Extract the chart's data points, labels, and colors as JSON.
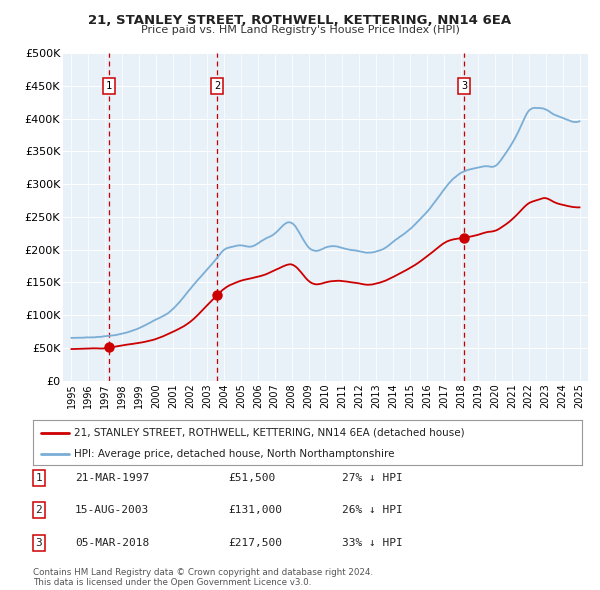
{
  "title": "21, STANLEY STREET, ROTHWELL, KETTERING, NN14 6EA",
  "subtitle": "Price paid vs. HM Land Registry's House Price Index (HPI)",
  "ylabel_ticks": [
    "£0",
    "£50K",
    "£100K",
    "£150K",
    "£200K",
    "£250K",
    "£300K",
    "£350K",
    "£400K",
    "£450K",
    "£500K"
  ],
  "ytick_vals": [
    0,
    50000,
    100000,
    150000,
    200000,
    250000,
    300000,
    350000,
    400000,
    450000,
    500000
  ],
  "xlim": [
    1994.5,
    2025.5
  ],
  "ylim": [
    0,
    500000
  ],
  "sale_dates": [
    1997.22,
    2003.62,
    2018.18
  ],
  "sale_prices": [
    51500,
    131000,
    217500
  ],
  "sale_labels": [
    "1",
    "2",
    "3"
  ],
  "hpi_color": "#7aaed6",
  "sale_color": "#cc0000",
  "dashed_color": "#cc0000",
  "plot_bg_color": "#e8f0f8",
  "grid_color": "#ffffff",
  "legend_label_red": "21, STANLEY STREET, ROTHWELL, KETTERING, NN14 6EA (detached house)",
  "legend_label_blue": "HPI: Average price, detached house, North Northamptonshire",
  "table_data": [
    [
      "1",
      "21-MAR-1997",
      "£51,500",
      "27% ↓ HPI"
    ],
    [
      "2",
      "15-AUG-2003",
      "£131,000",
      "26% ↓ HPI"
    ],
    [
      "3",
      "05-MAR-2018",
      "£217,500",
      "33% ↓ HPI"
    ]
  ],
  "footer": "Contains HM Land Registry data © Crown copyright and database right 2024.\nThis data is licensed under the Open Government Licence v3.0.",
  "xtick_years": [
    1995,
    1996,
    1997,
    1998,
    1999,
    2000,
    2001,
    2002,
    2003,
    2004,
    2005,
    2006,
    2007,
    2008,
    2009,
    2010,
    2011,
    2012,
    2013,
    2014,
    2015,
    2016,
    2017,
    2018,
    2019,
    2020,
    2021,
    2022,
    2023,
    2024,
    2025
  ],
  "hpi_keypoints": [
    [
      1995.0,
      65000
    ],
    [
      1996.0,
      66000
    ],
    [
      1997.0,
      68000
    ],
    [
      1998.0,
      72000
    ],
    [
      1999.0,
      80000
    ],
    [
      2000.0,
      93000
    ],
    [
      2001.0,
      110000
    ],
    [
      2002.0,
      140000
    ],
    [
      2003.0,
      170000
    ],
    [
      2003.5,
      185000
    ],
    [
      2004.0,
      200000
    ],
    [
      2004.5,
      205000
    ],
    [
      2005.0,
      207000
    ],
    [
      2005.5,
      205000
    ],
    [
      2006.0,
      210000
    ],
    [
      2006.5,
      218000
    ],
    [
      2007.0,
      225000
    ],
    [
      2007.5,
      238000
    ],
    [
      2008.0,
      242000
    ],
    [
      2008.5,
      225000
    ],
    [
      2009.0,
      205000
    ],
    [
      2009.5,
      200000
    ],
    [
      2010.0,
      205000
    ],
    [
      2010.5,
      207000
    ],
    [
      2011.0,
      205000
    ],
    [
      2011.5,
      202000
    ],
    [
      2012.0,
      200000
    ],
    [
      2012.5,
      198000
    ],
    [
      2013.0,
      200000
    ],
    [
      2013.5,
      205000
    ],
    [
      2014.0,
      215000
    ],
    [
      2014.5,
      225000
    ],
    [
      2015.0,
      235000
    ],
    [
      2015.5,
      248000
    ],
    [
      2016.0,
      262000
    ],
    [
      2016.5,
      278000
    ],
    [
      2017.0,
      295000
    ],
    [
      2017.5,
      310000
    ],
    [
      2018.0,
      320000
    ],
    [
      2018.5,
      325000
    ],
    [
      2019.0,
      328000
    ],
    [
      2019.5,
      330000
    ],
    [
      2020.0,
      330000
    ],
    [
      2020.5,
      345000
    ],
    [
      2021.0,
      365000
    ],
    [
      2021.5,
      390000
    ],
    [
      2022.0,
      415000
    ],
    [
      2022.5,
      420000
    ],
    [
      2023.0,
      418000
    ],
    [
      2023.5,
      410000
    ],
    [
      2024.0,
      405000
    ],
    [
      2024.5,
      400000
    ],
    [
      2025.0,
      400000
    ]
  ],
  "red_keypoints": [
    [
      1995.0,
      48000
    ],
    [
      1995.5,
      48500
    ],
    [
      1996.0,
      49000
    ],
    [
      1996.5,
      49500
    ],
    [
      1997.0,
      50000
    ],
    [
      1997.22,
      51500
    ],
    [
      1997.5,
      52000
    ],
    [
      1998.0,
      54000
    ],
    [
      1999.0,
      58000
    ],
    [
      2000.0,
      64000
    ],
    [
      2001.0,
      75000
    ],
    [
      2002.0,
      90000
    ],
    [
      2003.0,
      115000
    ],
    [
      2003.62,
      131000
    ],
    [
      2004.0,
      140000
    ],
    [
      2004.5,
      147000
    ],
    [
      2005.0,
      152000
    ],
    [
      2005.5,
      155000
    ],
    [
      2006.0,
      158000
    ],
    [
      2006.5,
      162000
    ],
    [
      2007.0,
      168000
    ],
    [
      2007.5,
      174000
    ],
    [
      2008.0,
      177000
    ],
    [
      2008.5,
      167000
    ],
    [
      2009.0,
      152000
    ],
    [
      2009.5,
      147000
    ],
    [
      2010.0,
      150000
    ],
    [
      2010.5,
      152000
    ],
    [
      2011.0,
      152000
    ],
    [
      2011.5,
      150000
    ],
    [
      2012.0,
      148000
    ],
    [
      2012.5,
      146000
    ],
    [
      2013.0,
      148000
    ],
    [
      2013.5,
      152000
    ],
    [
      2014.0,
      158000
    ],
    [
      2014.5,
      165000
    ],
    [
      2015.0,
      172000
    ],
    [
      2015.5,
      180000
    ],
    [
      2016.0,
      190000
    ],
    [
      2016.5,
      200000
    ],
    [
      2017.0,
      210000
    ],
    [
      2017.5,
      215000
    ],
    [
      2018.0,
      217000
    ],
    [
      2018.18,
      217500
    ],
    [
      2018.5,
      219000
    ],
    [
      2019.0,
      222000
    ],
    [
      2019.5,
      226000
    ],
    [
      2020.0,
      228000
    ],
    [
      2020.5,
      235000
    ],
    [
      2021.0,
      245000
    ],
    [
      2021.5,
      258000
    ],
    [
      2022.0,
      270000
    ],
    [
      2022.5,
      275000
    ],
    [
      2023.0,
      278000
    ],
    [
      2023.5,
      272000
    ],
    [
      2024.0,
      268000
    ],
    [
      2024.5,
      265000
    ],
    [
      2025.0,
      264000
    ]
  ]
}
